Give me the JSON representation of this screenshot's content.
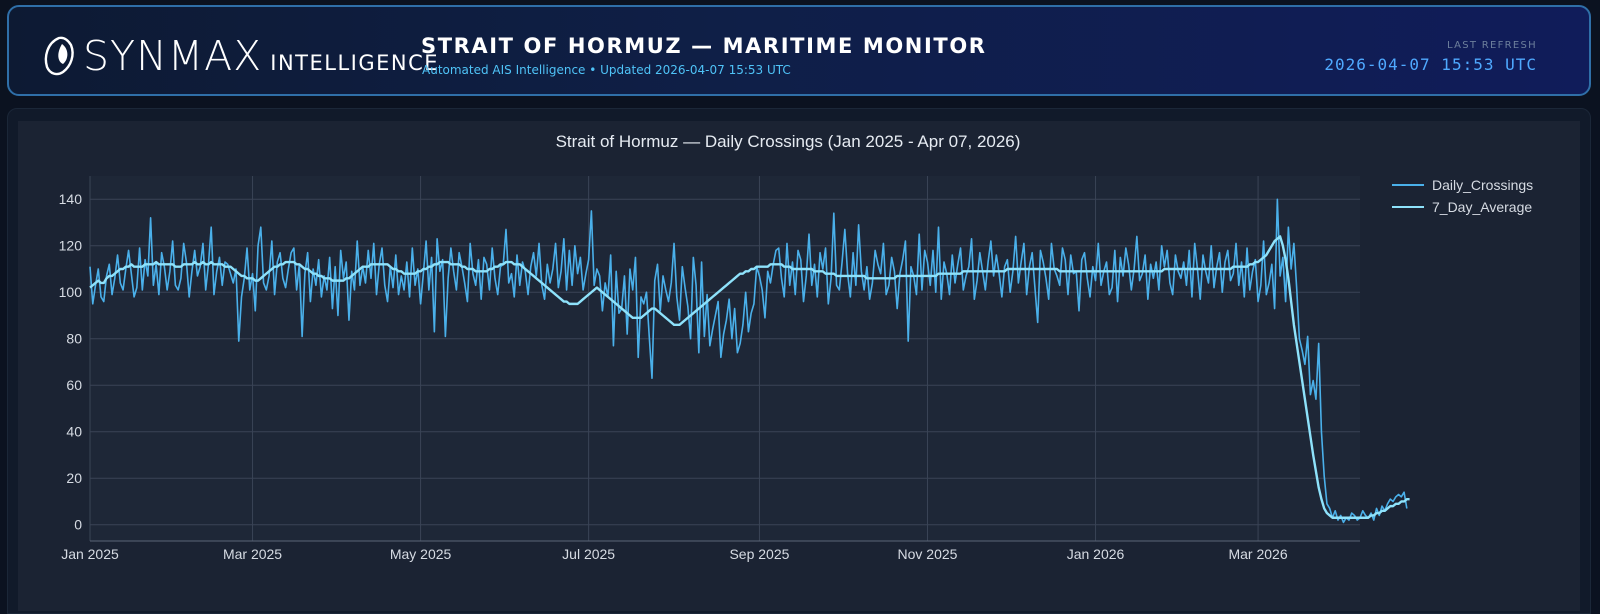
{
  "header": {
    "logo_word": "SYNMAX",
    "logo_sub": "INTELLIGENCE",
    "title": "STRAIT OF HORMUZ — MARITIME MONITOR",
    "subtitle": "Automated AIS Intelligence • Updated 2026-04-07 15:53 UTC",
    "refresh_label": "LAST REFRESH",
    "refresh_time": "2026-04-07 15:53 UTC"
  },
  "colors": {
    "daily": "#4ab0ea",
    "average": "#8ee2fb",
    "plot_bg": "#1b2333",
    "grid": "#3a4456",
    "text": "#d6dbe3"
  },
  "chart_data": {
    "type": "line",
    "title": "Strait of Hormuz — Daily Crossings (Jan 2025 - Apr 07, 2026)",
    "xlabel": "",
    "ylabel": "",
    "x_start": "2025-01-01",
    "x_end": "2026-04-07",
    "ylim": [
      -7,
      150
    ],
    "yticks": [
      0,
      20,
      40,
      60,
      80,
      100,
      120,
      140
    ],
    "xticks": [
      {
        "label": "Jan 2025",
        "date": "2025-01-01"
      },
      {
        "label": "Mar 2025",
        "date": "2025-03-01"
      },
      {
        "label": "May 2025",
        "date": "2025-05-01"
      },
      {
        "label": "Jul 2025",
        "date": "2025-07-01"
      },
      {
        "label": "Sep 2025",
        "date": "2025-09-01"
      },
      {
        "label": "Nov 2025",
        "date": "2025-11-01"
      },
      {
        "label": "Jan 2026",
        "date": "2026-01-01"
      },
      {
        "label": "Mar 2026",
        "date": "2026-03-01"
      }
    ],
    "grid": true,
    "legend_position": "top-right",
    "series": [
      {
        "name": "Daily_Crossings",
        "values": [
          111,
          95,
          103,
          110,
          98,
          96,
          107,
          112,
          99,
          106,
          116,
          104,
          101,
          110,
          118,
          108,
          98,
          102,
          119,
          101,
          114,
          107,
          132,
          103,
          112,
          99,
          117,
          111,
          101,
          109,
          122,
          103,
          101,
          106,
          121,
          113,
          98,
          109,
          118,
          107,
          111,
          121,
          101,
          112,
          128,
          99,
          109,
          115,
          103,
          113,
          112,
          108,
          104,
          110,
          79,
          98,
          106,
          119,
          101,
          108,
          92,
          120,
          128,
          104,
          101,
          107,
          122,
          99,
          113,
          117,
          106,
          102,
          110,
          117,
          119,
          101,
          112,
          81,
          108,
          117,
          96,
          110,
          103,
          114,
          98,
          107,
          101,
          115,
          93,
          111,
          90,
          118,
          106,
          113,
          88,
          109,
          101,
          122,
          103,
          111,
          104,
          118,
          106,
          121,
          99,
          112,
          119,
          103,
          96,
          111,
          102,
          116,
          99,
          107,
          101,
          113,
          98,
          119,
          103,
          110,
          95,
          108,
          122,
          101,
          115,
          83,
          123,
          109,
          114,
          81,
          106,
          119,
          109,
          101,
          117,
          111,
          104,
          96,
          121,
          108,
          103,
          114,
          97,
          115,
          112,
          101,
          119,
          106,
          99,
          111,
          112,
          127,
          104,
          108,
          98,
          116,
          103,
          113,
          109,
          99,
          111,
          117,
          107,
          121,
          103,
          97,
          112,
          104,
          110,
          121,
          102,
          109,
          123,
          101,
          118,
          103,
          120,
          108,
          115,
          101,
          108,
          114,
          135,
          103,
          110,
          107,
          92,
          104,
          98,
          116,
          77,
          109,
          91,
          93,
          107,
          82,
          110,
          101,
          115,
          72,
          98,
          95,
          100,
          81,
          63,
          105,
          112,
          92,
          107,
          101,
          96,
          104,
          121,
          98,
          88,
          111,
          102,
          94,
          80,
          115,
          103,
          74,
          113,
          81,
          99,
          77,
          84,
          90,
          96,
          72,
          82,
          88,
          97,
          80,
          93,
          74,
          78,
          86,
          100,
          83,
          91,
          95,
          111,
          107,
          101,
          89,
          109,
          104,
          112,
          118,
          119,
          106,
          98,
          121,
          103,
          113,
          99,
          118,
          114,
          96,
          107,
          125,
          103,
          112,
          98,
          117,
          110,
          119,
          95,
          106,
          134,
          103,
          101,
          113,
          127,
          108,
          98,
          117,
          103,
          129,
          109,
          101,
          111,
          97,
          104,
          118,
          112,
          108,
          121,
          99,
          103,
          115,
          109,
          93,
          108,
          114,
          122,
          79,
          111,
          107,
          99,
          125,
          101,
          118,
          113,
          103,
          118,
          100,
          128,
          97,
          113,
          108,
          99,
          116,
          104,
          112,
          119,
          101,
          107,
          111,
          123,
          97,
          105,
          117,
          109,
          101,
          113,
          122,
          107,
          116,
          108,
          98,
          111,
          114,
          100,
          109,
          124,
          104,
          113,
          121,
          99,
          111,
          117,
          102,
          87,
          118,
          113,
          106,
          97,
          121,
          110,
          107,
          103,
          119,
          114,
          99,
          116,
          108,
          109,
          92,
          114,
          117,
          106,
          98,
          111,
          105,
          121,
          103,
          109,
          113,
          99,
          102,
          118,
          96,
          115,
          107,
          119,
          112,
          101,
          110,
          124,
          105,
          108,
          116,
          97,
          112,
          106,
          113,
          101,
          120,
          111,
          118,
          104,
          99,
          116,
          109,
          106,
          113,
          103,
          118,
          98,
          121,
          110,
          97,
          116,
          109,
          104,
          120,
          102,
          111,
          117,
          100,
          113,
          118,
          105,
          108,
          121,
          103,
          113,
          98,
          119,
          101,
          109,
          114,
          96,
          103,
          122,
          99,
          104,
          112,
          93,
          140,
          107,
          115,
          96,
          128,
          110,
          121,
          102,
          80,
          75,
          69,
          81,
          56,
          62,
          54,
          78,
          40,
          21,
          9,
          7,
          3,
          6,
          2,
          4,
          1,
          3,
          2,
          5,
          4,
          2,
          3,
          6,
          4,
          3,
          5,
          2,
          7,
          4,
          8,
          6,
          9,
          11,
          10,
          12,
          13,
          12,
          14,
          7
        ]
      },
      {
        "name": "7_Day_Average",
        "values": [
          102,
          103,
          104,
          105,
          104,
          104,
          106,
          107,
          107,
          108,
          109,
          110,
          110,
          111,
          111,
          112,
          111,
          111,
          111,
          111,
          112,
          112,
          112,
          112,
          113,
          112,
          112,
          112,
          112,
          112,
          112,
          111,
          111,
          111,
          112,
          112,
          112,
          112,
          113,
          112,
          112,
          113,
          112,
          112,
          113,
          112,
          112,
          112,
          112,
          111,
          111,
          111,
          110,
          109,
          108,
          107,
          107,
          106,
          106,
          106,
          105,
          105,
          106,
          107,
          108,
          109,
          110,
          111,
          111,
          112,
          112,
          113,
          113,
          113,
          113,
          112,
          112,
          111,
          110,
          110,
          109,
          108,
          108,
          107,
          107,
          106,
          106,
          106,
          105,
          105,
          105,
          105,
          105,
          106,
          106,
          107,
          108,
          109,
          110,
          111,
          111,
          111,
          112,
          112,
          112,
          112,
          112,
          112,
          112,
          111,
          110,
          110,
          109,
          109,
          108,
          108,
          108,
          108,
          108,
          109,
          109,
          110,
          110,
          111,
          111,
          112,
          112,
          113,
          113,
          113,
          113,
          112,
          112,
          112,
          112,
          111,
          111,
          110,
          110,
          110,
          109,
          109,
          109,
          109,
          109,
          110,
          110,
          111,
          111,
          112,
          112,
          113,
          113,
          113,
          112,
          112,
          112,
          111,
          110,
          109,
          108,
          107,
          106,
          105,
          104,
          103,
          102,
          101,
          100,
          99,
          98,
          97,
          96,
          96,
          95,
          95,
          95,
          95,
          96,
          97,
          98,
          99,
          100,
          101,
          102,
          101,
          100,
          99,
          98,
          97,
          96,
          95,
          94,
          93,
          92,
          91,
          90,
          89,
          89,
          89,
          89,
          90,
          91,
          92,
          93,
          93,
          92,
          91,
          90,
          89,
          88,
          87,
          86,
          86,
          86,
          87,
          88,
          89,
          90,
          91,
          92,
          93,
          94,
          95,
          96,
          97,
          98,
          99,
          100,
          101,
          102,
          103,
          104,
          105,
          106,
          107,
          108,
          108,
          109,
          109,
          110,
          110,
          111,
          111,
          111,
          111,
          111,
          112,
          112,
          112,
          112,
          112,
          111,
          111,
          111,
          110,
          110,
          110,
          110,
          110,
          110,
          110,
          110,
          109,
          109,
          109,
          109,
          108,
          108,
          108,
          108,
          107,
          107,
          107,
          107,
          107,
          107,
          107,
          107,
          107,
          107,
          107,
          106,
          106,
          106,
          106,
          106,
          106,
          106,
          106,
          106,
          106,
          106,
          107,
          107,
          107,
          107,
          107,
          107,
          107,
          107,
          107,
          107,
          107,
          107,
          107,
          107,
          107,
          108,
          108,
          108,
          108,
          108,
          108,
          108,
          108,
          108,
          109,
          109,
          109,
          109,
          109,
          109,
          109,
          109,
          109,
          109,
          109,
          109,
          109,
          109,
          109,
          109,
          110,
          110,
          110,
          110,
          110,
          110,
          110,
          110,
          110,
          110,
          110,
          110,
          110,
          110,
          110,
          110,
          110,
          110,
          110,
          109,
          109,
          109,
          109,
          109,
          109,
          109,
          109,
          109,
          109,
          109,
          109,
          109,
          109,
          109,
          109,
          109,
          109,
          109,
          109,
          109,
          109,
          109,
          109,
          109,
          109,
          109,
          109,
          109,
          109,
          109,
          109,
          109,
          109,
          109,
          109,
          109,
          109,
          110,
          110,
          110,
          110,
          110,
          110,
          110,
          110,
          110,
          110,
          110,
          110,
          110,
          110,
          110,
          110,
          110,
          110,
          110,
          110,
          110,
          110,
          110,
          110,
          110,
          111,
          111,
          111,
          111,
          111,
          111,
          112,
          112,
          113,
          113,
          114,
          115,
          116,
          118,
          120,
          122,
          123,
          124,
          120,
          114,
          106,
          96,
          86,
          78,
          70,
          62,
          54,
          46,
          38,
          30,
          23,
          16,
          11,
          7,
          5,
          4,
          3,
          3,
          3,
          3,
          3,
          3,
          3,
          3,
          3,
          3,
          3,
          3,
          3,
          3,
          4,
          4,
          5,
          5,
          6,
          6,
          7,
          8,
          8,
          9,
          9,
          10,
          10,
          11,
          11
        ]
      }
    ]
  }
}
